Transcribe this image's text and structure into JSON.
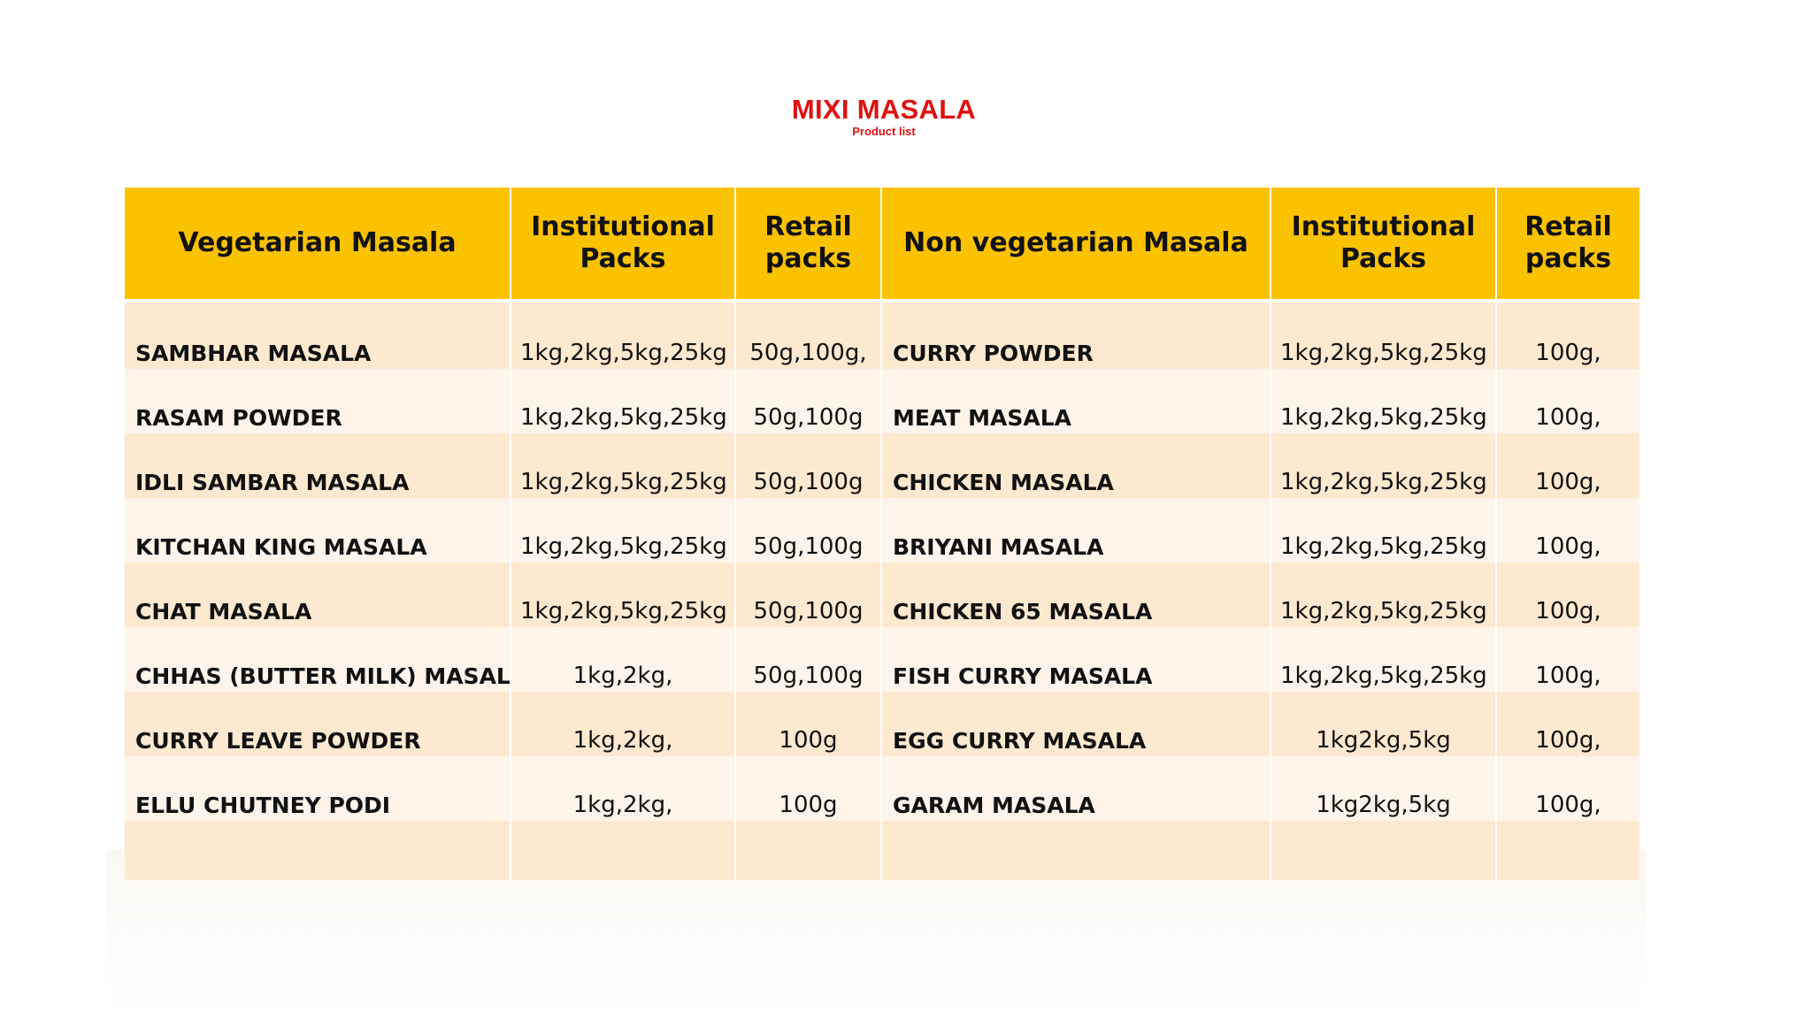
{
  "header": {
    "title": "MIXI MASALA",
    "subtitle": "Product list"
  },
  "colors": {
    "title": "#e01010",
    "header_fill": "#fbc200",
    "row_odd": "#fde9cf",
    "row_even": "#fef4ea"
  },
  "table": {
    "columns": [
      "Vegetarian  Masala",
      "Institutional Packs",
      "Retail packs",
      "Non vegetarian  Masala",
      "Institutional Packs",
      "Retail packs"
    ],
    "rows": [
      [
        "SAMBHAR MASALA",
        "1kg,2kg,5kg,25kg",
        "50g,100g,",
        "CURRY POWDER",
        "1kg,2kg,5kg,25kg",
        "100g,"
      ],
      [
        "RASAM POWDER",
        "1kg,2kg,5kg,25kg",
        "50g,100g",
        "MEAT MASALA",
        "1kg,2kg,5kg,25kg",
        "100g,"
      ],
      [
        "IDLI SAMBAR MASALA",
        "1kg,2kg,5kg,25kg",
        "50g,100g",
        "CHICKEN MASALA",
        "1kg,2kg,5kg,25kg",
        "100g,"
      ],
      [
        "KITCHAN KING MASALA",
        "1kg,2kg,5kg,25kg",
        "50g,100g",
        "BRIYANI MASALA",
        "1kg,2kg,5kg,25kg",
        "100g,"
      ],
      [
        "CHAT MASALA",
        "1kg,2kg,5kg,25kg",
        "50g,100g",
        "CHICKEN 65 MASALA",
        "1kg,2kg,5kg,25kg",
        "100g,"
      ],
      [
        "CHHAS (BUTTER MILK) MASALA",
        "1kg,2kg,",
        "50g,100g",
        "FISH CURRY MASALA",
        "1kg,2kg,5kg,25kg",
        "100g,"
      ],
      [
        "CURRY LEAVE POWDER",
        "1kg,2kg,",
        "100g",
        "EGG CURRY MASALA",
        "1kg2kg,5kg",
        "100g,"
      ],
      [
        "ELLU CHUTNEY PODI",
        "1kg,2kg,",
        "100g",
        "GARAM  MASALA",
        "1kg2kg,5kg",
        "100g,"
      ],
      [
        "",
        "",
        "",
        "",
        "",
        ""
      ]
    ]
  }
}
